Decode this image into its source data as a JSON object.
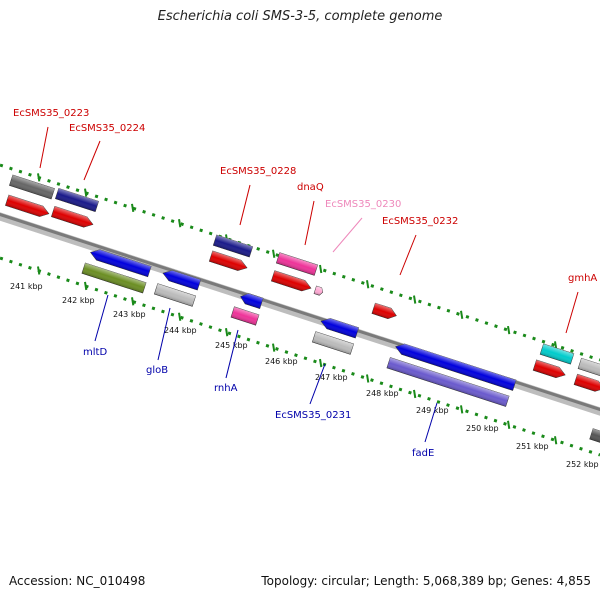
{
  "title": "Escherichia coli SMS-3-5, complete genome",
  "footer": {
    "accession": "Accession: NC_010498",
    "summary": "Topology: circular; Length: 5,068,389 bp; Genes: 4,855"
  },
  "colors": {
    "backbone": "#8a8a8a",
    "tick": "#1a8a1a",
    "label_red": "#cc0000",
    "label_blue": "#0000aa",
    "label_pink": "#ee88bb"
  },
  "kbp_ticks": [
    {
      "label": "241 kbp",
      "row": "lower"
    },
    {
      "label": "242 kbp",
      "row": "lower"
    },
    {
      "label": "243 kbp",
      "row": "lower"
    },
    {
      "label": "244 kbp",
      "row": "lower"
    },
    {
      "label": "245 kbp",
      "row": "lower"
    },
    {
      "label": "246 kbp",
      "row": "lower"
    },
    {
      "label": "247 kbp",
      "row": "lower"
    },
    {
      "label": "248 kbp",
      "row": "lower"
    },
    {
      "label": "249 kbp",
      "row": "lower"
    },
    {
      "label": "250 kbp",
      "row": "lower"
    },
    {
      "label": "251 kbp",
      "row": "lower"
    },
    {
      "label": "252 kbp",
      "row": "lower"
    }
  ],
  "gene_labels": [
    {
      "id": "EcSMS35_0223",
      "text": "EcSMS35_0223",
      "color": "#cc0000"
    },
    {
      "id": "EcSMS35_0224",
      "text": "EcSMS35_0224",
      "color": "#cc0000"
    },
    {
      "id": "EcSMS35_0228",
      "text": "EcSMS35_0228",
      "color": "#cc0000"
    },
    {
      "id": "dnaQ",
      "text": "dnaQ",
      "color": "#cc0000"
    },
    {
      "id": "EcSMS35_0230",
      "text": "EcSMS35_0230",
      "color": "#ee88bb"
    },
    {
      "id": "EcSMS35_0232",
      "text": "EcSMS35_0232",
      "color": "#cc0000"
    },
    {
      "id": "gmhA",
      "text": "gmhA",
      "color": "#cc0000"
    },
    {
      "id": "mltD",
      "text": "mltD",
      "color": "#0000aa"
    },
    {
      "id": "gloB",
      "text": "gloB",
      "color": "#0000aa"
    },
    {
      "id": "rnhA",
      "text": "rnhA",
      "color": "#0000aa"
    },
    {
      "id": "EcSMS35_0231",
      "text": "EcSMS35_0231",
      "color": "#0000aa"
    },
    {
      "id": "fadE",
      "text": "fadE",
      "color": "#0000aa"
    }
  ],
  "features": [
    {
      "id": "f1",
      "color": "#666666"
    },
    {
      "id": "f2",
      "color": "#dd0000"
    },
    {
      "id": "f3",
      "color": "#1a1a8a"
    },
    {
      "id": "f4",
      "color": "#dd0000"
    },
    {
      "id": "f5",
      "color": "#0000dd"
    },
    {
      "id": "f6",
      "color": "#6b8e23"
    },
    {
      "id": "f7",
      "color": "#0000dd"
    },
    {
      "id": "f8",
      "color": "#bbbbbb"
    },
    {
      "id": "f9",
      "color": "#1a1a8a"
    },
    {
      "id": "f10",
      "color": "#dd0000"
    },
    {
      "id": "f11",
      "color": "#0000dd"
    },
    {
      "id": "f12",
      "color": "#ee3399"
    },
    {
      "id": "f13",
      "color": "#ee3399"
    },
    {
      "id": "f14",
      "color": "#dd0000"
    },
    {
      "id": "f15",
      "color": "#ffaad4"
    },
    {
      "id": "f16",
      "color": "#0000dd"
    },
    {
      "id": "f17",
      "color": "#bbbbbb"
    },
    {
      "id": "f18",
      "color": "#dd0000"
    },
    {
      "id": "f19",
      "color": "#0000dd"
    },
    {
      "id": "f20",
      "color": "#6a5acd"
    },
    {
      "id": "f21",
      "color": "#00cccc"
    },
    {
      "id": "f22",
      "color": "#dd0000"
    },
    {
      "id": "f23",
      "color": "#bbbbbb"
    },
    {
      "id": "f24",
      "color": "#dd0000"
    },
    {
      "id": "f25",
      "color": "#555555"
    }
  ]
}
